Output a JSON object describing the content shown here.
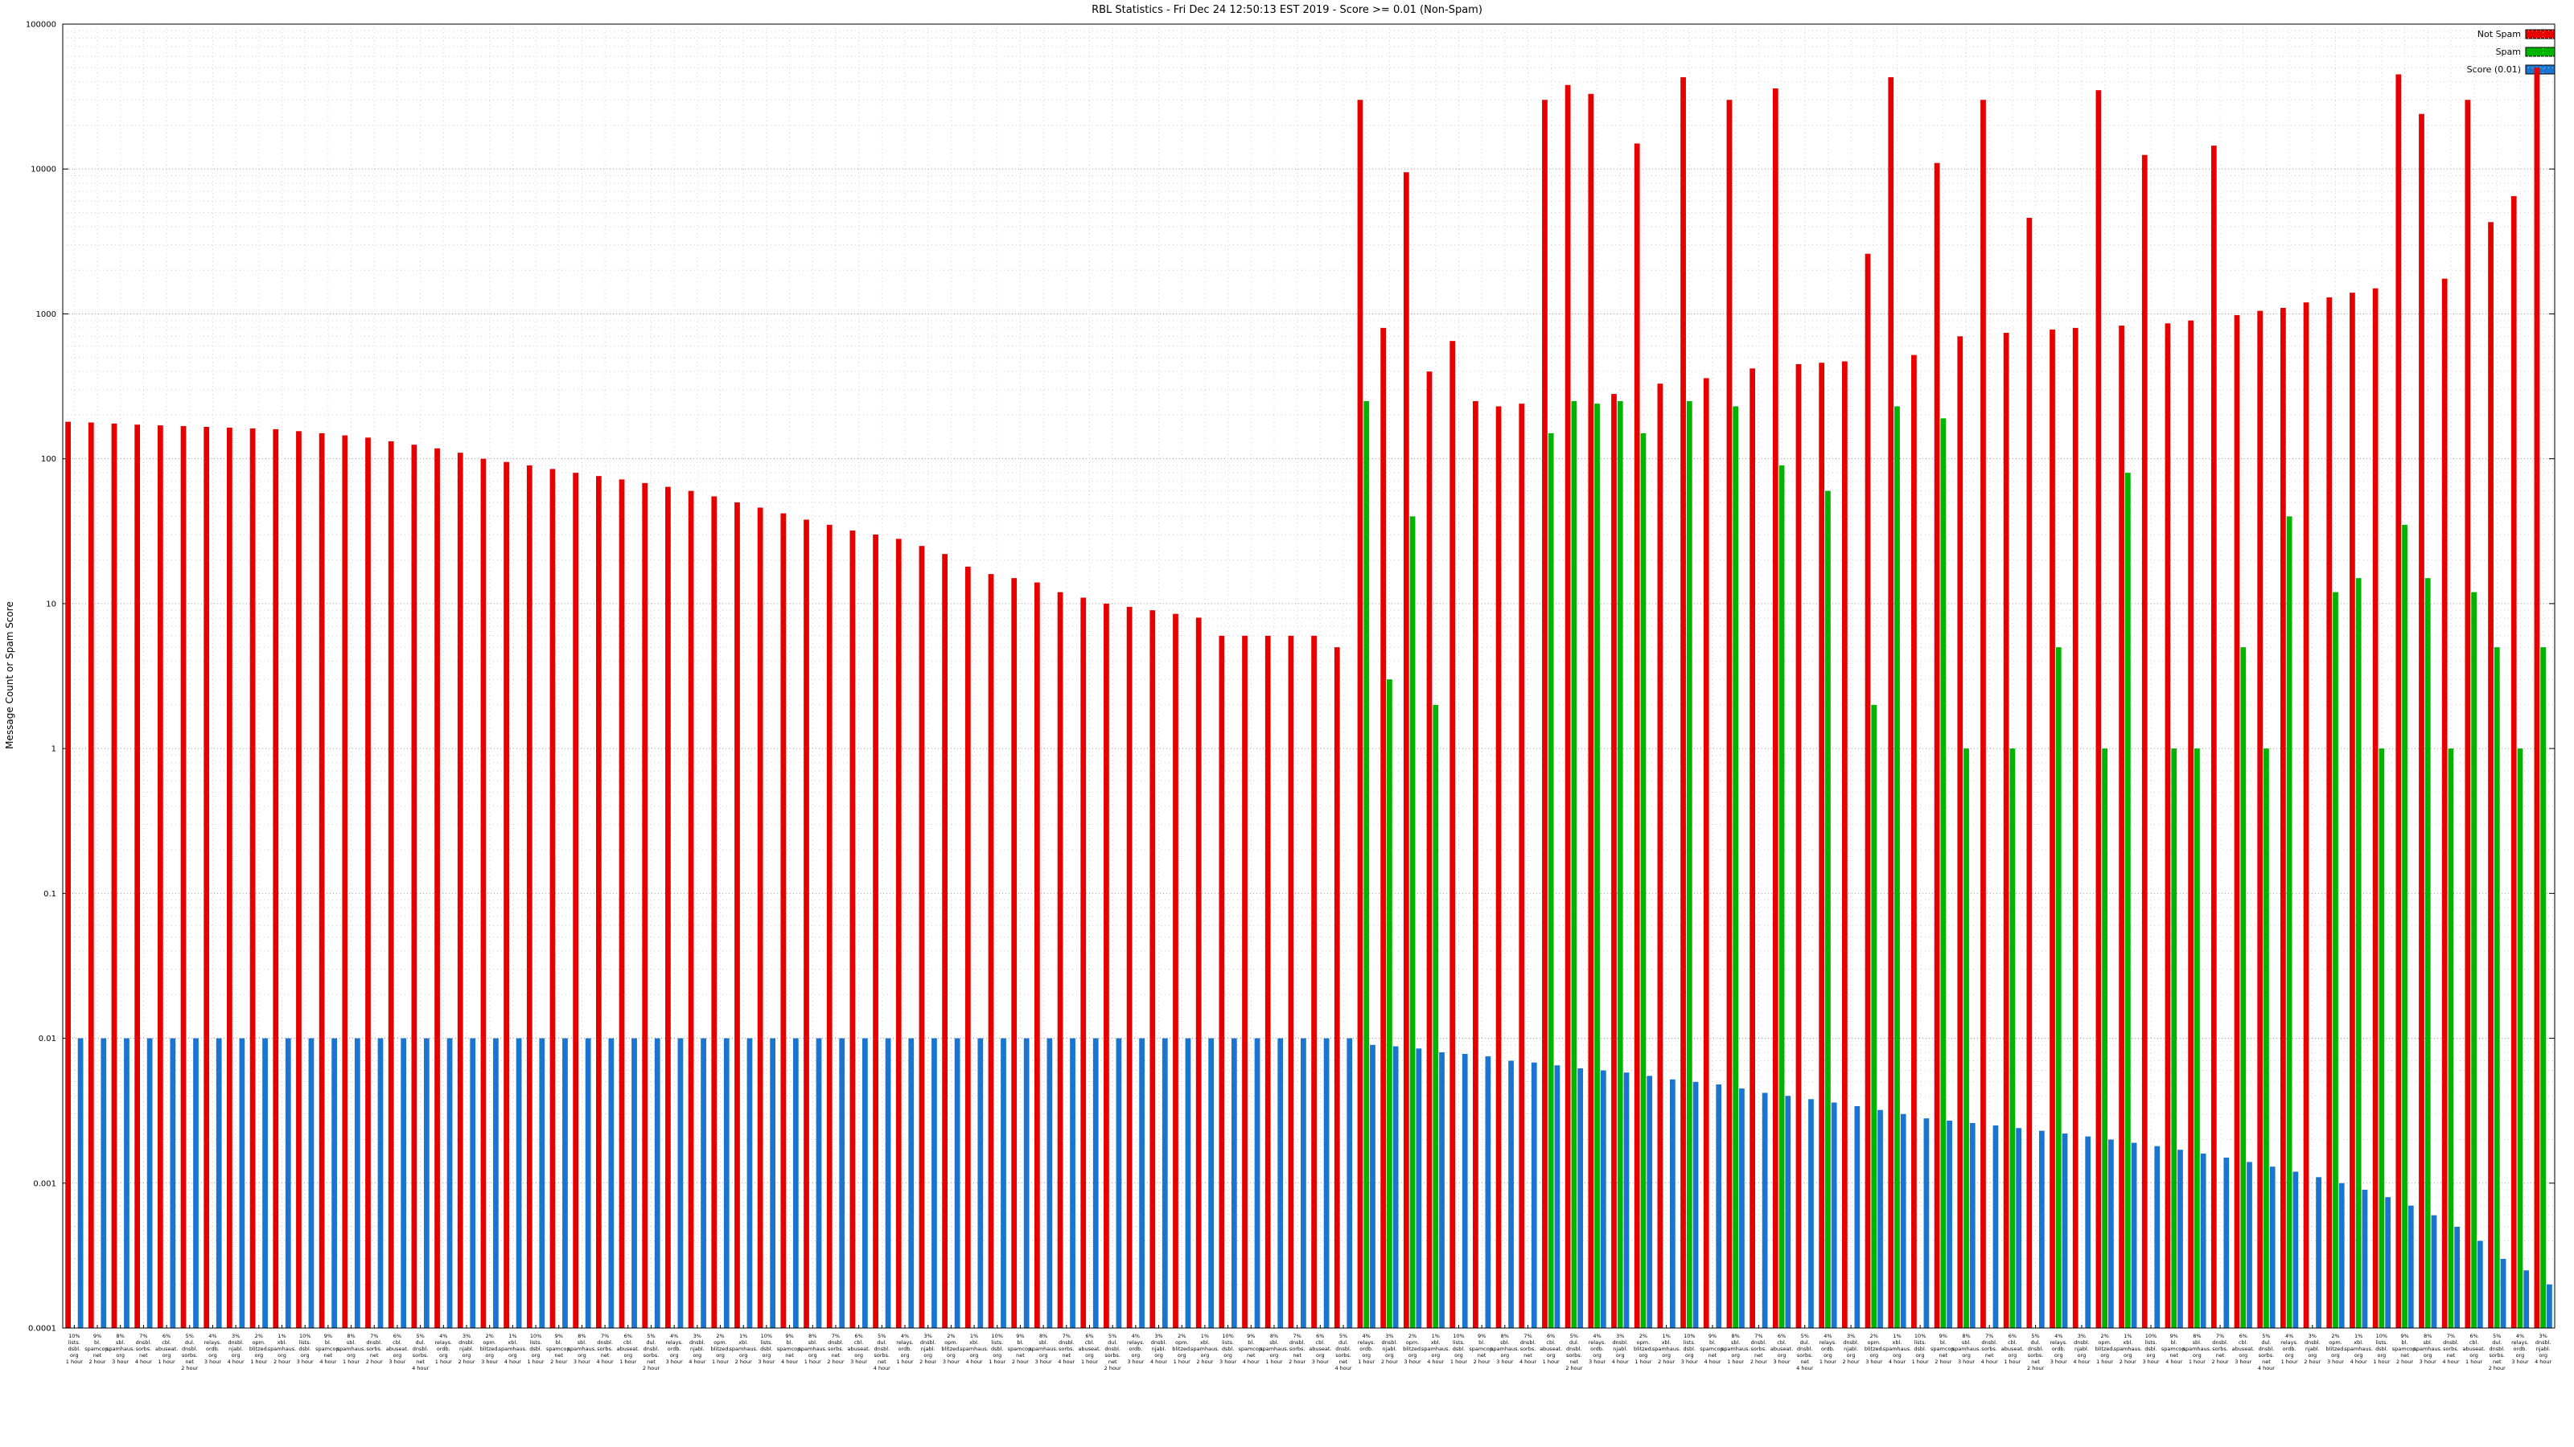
{
  "header": {
    "title": "RBL Statistics - Fri Dec 24 12:50:13 EST 2019 - Score >= 0.01 (Non-Spam)"
  },
  "legend": [
    {
      "label": "Not Spam",
      "color": "#e60000"
    },
    {
      "label": "Spam",
      "color": "#00b400"
    },
    {
      "label": "Score (0.01)",
      "color": "#1a75d1"
    }
  ],
  "chart_data": {
    "type": "bar",
    "title": "RBL Statistics - Fri Dec 24 12:50:13 EST 2019 - Score >= 0.01 (Non-Spam)",
    "xlabel": "",
    "ylabel": "Message Count or Spam Score",
    "y_scale": "log",
    "ylim": [
      0.0001,
      100000
    ],
    "y_ticks": [
      "100000",
      "10000",
      "1000",
      "100",
      "10",
      "1",
      "0.1",
      "0.01",
      "0.001",
      "0.0001"
    ],
    "grid": true,
    "legend_position": "top-right",
    "categories": [
      "10% lists. dsbl. org 1 hour",
      "9% bl. spamcop. net 2 hour",
      "8% sbl. spamhaus. org 3 hour",
      "7% dnsbl. sorbs. net 4 hour",
      "6% cbl. abuseat. org 1 hour",
      "5% dul. dnsbl. sorbs. net 2 hour",
      "4% relays. ordb. org 3 hour",
      "3% dnsbl. njabl. org 4 hour",
      "2% opm. blitzed. org 1 hour",
      "1% xbl. spamhaus. org 2 hour",
      "10% lists. dsbl. org 3 hour",
      "9% bl. spamcop. net 4 hour",
      "8% sbl. spamhaus. org 1 hour",
      "7% dnsbl. sorbs. net 2 hour",
      "6% cbl. abuseat. org 3 hour",
      "5% dul. dnsbl. sorbs. net 4 hour",
      "4% relays. ordb. org 1 hour",
      "3% dnsbl. njabl. org 2 hour",
      "2% opm. blitzed. org 3 hour",
      "1% xbl. spamhaus. org 4 hour",
      "10% lists. dsbl. org 1 hour",
      "9% bl. spamcop. net 2 hour",
      "8% sbl. spamhaus. org 3 hour",
      "7% dnsbl. sorbs. net 4 hour",
      "6% cbl. abuseat. org 1 hour",
      "5% dul. dnsbl. sorbs. net 2 hour",
      "4% relays. ordb. org 3 hour",
      "3% dnsbl. njabl. org 4 hour",
      "2% opm. blitzed. org 1 hour",
      "1% xbl. spamhaus. org 2 hour",
      "10% lists. dsbl. org 3 hour",
      "9% bl. spamcop. net 4 hour",
      "8% sbl. spamhaus. org 1 hour",
      "7% dnsbl. sorbs. net 2 hour",
      "6% cbl. abuseat. org 3 hour",
      "5% dul. dnsbl. sorbs. net 4 hour",
      "4% relays. ordb. org 1 hour",
      "3% dnsbl. njabl. org 2 hour",
      "2% opm. blitzed. org 3 hour",
      "1% xbl. spamhaus. org 4 hour",
      "10% lists. dsbl. org 1 hour",
      "9% bl. spamcop. net 2 hour",
      "8% sbl. spamhaus. org 3 hour",
      "7% dnsbl. sorbs. net 4 hour",
      "6% cbl. abuseat. org 1 hour",
      "5% dul. dnsbl. sorbs. net 2 hour",
      "4% relays. ordb. org 3 hour",
      "3% dnsbl. njabl. org 4 hour",
      "2% opm. blitzed. org 1 hour",
      "1% xbl. spamhaus. org 2 hour",
      "10% lists. dsbl. org 3 hour",
      "9% bl. spamcop. net 4 hour",
      "8% sbl. spamhaus. org 1 hour",
      "7% dnsbl. sorbs. net 2 hour",
      "6% cbl. abuseat. org 3 hour",
      "5% dul. dnsbl. sorbs. net 4 hour",
      "4% relays. ordb. org 1 hour",
      "3% dnsbl. njabl. org 2 hour",
      "2% opm. blitzed. org 3 hour",
      "1% xbl. spamhaus. org 4 hour",
      "10% lists. dsbl. org 1 hour",
      "9% bl. spamcop. net 2 hour",
      "8% sbl. spamhaus. org 3 hour",
      "7% dnsbl. sorbs. net 4 hour",
      "6% cbl. abuseat. org 1 hour",
      "5% dul. dnsbl. sorbs. net 2 hour",
      "4% relays. ordb. org 3 hour",
      "3% dnsbl. njabl. org 4 hour",
      "2% opm. blitzed. org 1 hour",
      "1% xbl. spamhaus. org 2 hour",
      "10% lists. dsbl. org 3 hour",
      "9% bl. spamcop. net 4 hour",
      "8% sbl. spamhaus. org 1 hour",
      "7% dnsbl. sorbs. net 2 hour",
      "6% cbl. abuseat. org 3 hour",
      "5% dul. dnsbl. sorbs. net 4 hour",
      "4% relays. ordb. org 1 hour",
      "3% dnsbl. njabl. org 2 hour",
      "2% opm. blitzed. org 3 hour",
      "1% xbl. spamhaus. org 4 hour",
      "10% lists. dsbl. org 1 hour",
      "9% bl. spamcop. net 2 hour",
      "8% sbl. spamhaus. org 3 hour",
      "7% dnsbl. sorbs. net 4 hour",
      "6% cbl. abuseat. org 1 hour",
      "5% dul. dnsbl. sorbs. net 2 hour",
      "4% relays. ordb. org 3 hour",
      "3% dnsbl. njabl. org 4 hour",
      "2% opm. blitzed. org 1 hour",
      "1% xbl. spamhaus. org 2 hour",
      "10% lists. dsbl. org 3 hour",
      "9% bl. spamcop. net 4 hour",
      "8% sbl. spamhaus. org 1 hour",
      "7% dnsbl. sorbs. net 2 hour",
      "6% cbl. abuseat. org 3 hour",
      "5% dul. dnsbl. sorbs. net 4 hour",
      "4% relays. ordb. org 1 hour",
      "3% dnsbl. njabl. org 2 hour",
      "2% opm. blitzed. org 3 hour",
      "1% xbl. spamhaus. org 4 hour",
      "10% lists. dsbl. org 1 hour",
      "9% bl. spamcop. net 2 hour",
      "8% sbl. spamhaus. org 3 hour",
      "7% dnsbl. sorbs. net 4 hour",
      "6% cbl. abuseat. org 1 hour",
      "5% dul. dnsbl. sorbs. net 2 hour",
      "4% relays. ordb. org 3 hour",
      "3% dnsbl. njabl. org 4 hour"
    ],
    "series": [
      {
        "name": "Not Spam",
        "color": "#e60000",
        "values": [
          180,
          178,
          175,
          172,
          170,
          168,
          166,
          164,
          162,
          160,
          155,
          150,
          145,
          140,
          132,
          125,
          118,
          110,
          100,
          95,
          90,
          85,
          80,
          76,
          72,
          68,
          64,
          60,
          55,
          50,
          46,
          42,
          38,
          35,
          32,
          30,
          28,
          25,
          22,
          18,
          16,
          15,
          14,
          12,
          11,
          10,
          9.5,
          9,
          8.5,
          8,
          6,
          6,
          6,
          6,
          6,
          5,
          30000,
          800,
          9500,
          400,
          650,
          250,
          230,
          240,
          30000,
          38000,
          33000,
          280,
          15000,
          330,
          43000,
          360,
          30000,
          420,
          36000,
          450,
          460,
          470,
          2600,
          43000,
          520,
          11000,
          700,
          30000,
          740,
          4600,
          780,
          800,
          35000,
          830,
          12500,
          860,
          900,
          14500,
          980,
          1050,
          1100,
          1200,
          1300,
          1400,
          1500,
          45000,
          24000,
          1750,
          30000,
          4300,
          6500,
          50000
        ]
      },
      {
        "name": "Spam",
        "color": "#00b400",
        "values": [
          0,
          0,
          0,
          0,
          0,
          0,
          0,
          0,
          0,
          0,
          0,
          0,
          0,
          0,
          0,
          0,
          0,
          0,
          0,
          0,
          0,
          0,
          0,
          0,
          0,
          0,
          0,
          0,
          0,
          0,
          0,
          0,
          0,
          0,
          0,
          0,
          0,
          0,
          0,
          0,
          0,
          0,
          0,
          0,
          0,
          0,
          0,
          0,
          0,
          0,
          0,
          0,
          0,
          0,
          0,
          0,
          250,
          3,
          40,
          2,
          0,
          0,
          0,
          0,
          150,
          250,
          240,
          250,
          150,
          0,
          250,
          0,
          230,
          0,
          90,
          0,
          60,
          0,
          2,
          230,
          0,
          190,
          1,
          0,
          1,
          0,
          5,
          0,
          1,
          80,
          0,
          1,
          1,
          0,
          5,
          1,
          40,
          0,
          12,
          15,
          1,
          35,
          15,
          1,
          12,
          5,
          1,
          5
        ]
      },
      {
        "name": "Score (0.01)",
        "color": "#1a75d1",
        "values": [
          0.01,
          0.01,
          0.01,
          0.01,
          0.01,
          0.01,
          0.01,
          0.01,
          0.01,
          0.01,
          0.01,
          0.01,
          0.01,
          0.01,
          0.01,
          0.01,
          0.01,
          0.01,
          0.01,
          0.01,
          0.01,
          0.01,
          0.01,
          0.01,
          0.01,
          0.01,
          0.01,
          0.01,
          0.01,
          0.01,
          0.01,
          0.01,
          0.01,
          0.01,
          0.01,
          0.01,
          0.01,
          0.01,
          0.01,
          0.01,
          0.01,
          0.01,
          0.01,
          0.01,
          0.01,
          0.01,
          0.01,
          0.01,
          0.01,
          0.01,
          0.01,
          0.01,
          0.01,
          0.01,
          0.01,
          0.01,
          0.009,
          0.0088,
          0.0085,
          0.008,
          0.0078,
          0.0075,
          0.007,
          0.0068,
          0.0065,
          0.0062,
          0.006,
          0.0058,
          0.0055,
          0.0052,
          0.005,
          0.0048,
          0.0045,
          0.0042,
          0.004,
          0.0038,
          0.0036,
          0.0034,
          0.0032,
          0.003,
          0.0028,
          0.0027,
          0.0026,
          0.0025,
          0.0024,
          0.0023,
          0.0022,
          0.0021,
          0.002,
          0.0019,
          0.0018,
          0.0017,
          0.0016,
          0.0015,
          0.0014,
          0.0013,
          0.0012,
          0.0011,
          0.001,
          0.0009,
          0.0008,
          0.0007,
          0.0006,
          0.0005,
          0.0004,
          0.0003,
          0.00025,
          0.0002
        ]
      }
    ]
  }
}
